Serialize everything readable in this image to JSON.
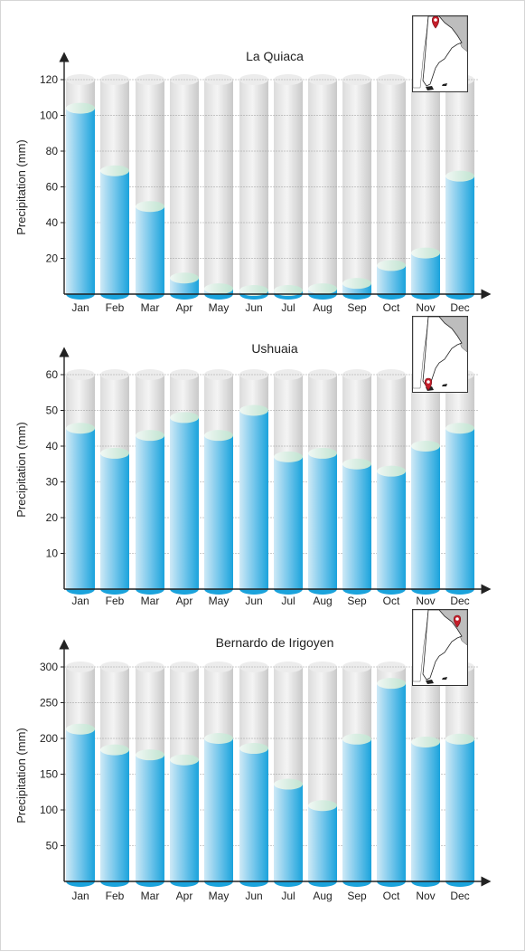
{
  "chart_data": [
    {
      "type": "bar",
      "title": "La Quiaca",
      "ylabel": "Precipitation (mm)",
      "xlabel": "",
      "categories": [
        "Jan",
        "Feb",
        "Mar",
        "Apr",
        "May",
        "Jun",
        "Jul",
        "Aug",
        "Sep",
        "Oct",
        "Nov",
        "Dec"
      ],
      "values": [
        104,
        69,
        49,
        9,
        3,
        2,
        2,
        3,
        6,
        16,
        23,
        66
      ],
      "ylim": [
        0,
        120
      ],
      "yticks": [
        20,
        40,
        60,
        80,
        100,
        120
      ],
      "grid": true,
      "bar_style": "3d-cylinder",
      "map_marker": "north"
    },
    {
      "type": "bar",
      "title": "Ushuaia",
      "ylabel": "Precipitation (mm)",
      "xlabel": "",
      "categories": [
        "Jan",
        "Feb",
        "Mar",
        "Apr",
        "May",
        "Jun",
        "Jul",
        "Aug",
        "Sep",
        "Oct",
        "Nov",
        "Dec"
      ],
      "values": [
        45,
        38,
        43,
        48,
        43,
        50,
        37,
        38,
        35,
        33,
        40,
        45
      ],
      "ylim": [
        0,
        60
      ],
      "yticks": [
        10,
        20,
        30,
        40,
        50,
        60
      ],
      "grid": true,
      "bar_style": "3d-cylinder",
      "map_marker": "south"
    },
    {
      "type": "bar",
      "title": "Bernardo de Irigoyen",
      "ylabel": "Precipitation (mm)",
      "xlabel": "",
      "categories": [
        "Jan",
        "Feb",
        "Mar",
        "Apr",
        "May",
        "Jun",
        "Jul",
        "Aug",
        "Sep",
        "Oct",
        "Nov",
        "Dec"
      ],
      "values": [
        213,
        184,
        177,
        170,
        200,
        186,
        136,
        106,
        199,
        277,
        195,
        199
      ],
      "ylim": [
        0,
        300
      ],
      "yticks": [
        50,
        100,
        150,
        200,
        250,
        300
      ],
      "grid": true,
      "bar_style": "3d-cylinder",
      "map_marker": "northeast"
    }
  ],
  "colors": {
    "bar_fill_light": "#cfe9f6",
    "bar_fill_dark": "#1aa3dc",
    "bar_top": "#e3f2ea",
    "background_column_light": "#f4f4f4",
    "background_column_dark": "#c9c9c9",
    "grid": "#9a9a9a",
    "axis": "#222222",
    "map_marker": "#c41e2a",
    "map_land": "#ffffff",
    "map_neighbors": "#bdbdbd"
  }
}
